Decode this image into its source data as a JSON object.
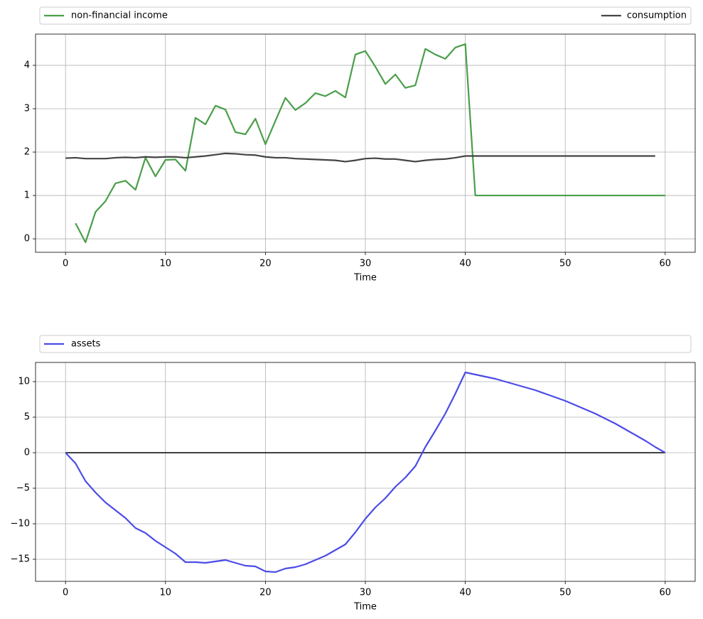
{
  "chart_data": [
    {
      "type": "line",
      "xlabel": "Time",
      "legend": "above-expand",
      "grid": true,
      "x": [
        0,
        1,
        2,
        3,
        4,
        5,
        6,
        7,
        8,
        9,
        10,
        11,
        12,
        13,
        14,
        15,
        16,
        17,
        18,
        19,
        20,
        21,
        22,
        23,
        24,
        25,
        26,
        27,
        28,
        29,
        30,
        31,
        32,
        33,
        34,
        35,
        36,
        37,
        38,
        39,
        40,
        41,
        42,
        43,
        44,
        45,
        46,
        47,
        48,
        49,
        50,
        51,
        52,
        53,
        54,
        55,
        56,
        57,
        58,
        59,
        60
      ],
      "xlim": [
        -3,
        63
      ],
      "xticks": [
        0,
        10,
        20,
        30,
        40,
        50,
        60
      ],
      "ylim": [
        -0.31,
        4.72
      ],
      "yticks": [
        0,
        1,
        2,
        3,
        4
      ],
      "series": [
        {
          "name": "non-financial income",
          "color": "#4a9e4a",
          "values": [
            null,
            0.36,
            -0.08,
            0.62,
            0.87,
            1.28,
            1.34,
            1.13,
            1.87,
            1.44,
            1.82,
            1.83,
            1.57,
            2.79,
            2.64,
            3.07,
            2.98,
            2.46,
            2.41,
            2.77,
            2.18,
            2.72,
            3.25,
            2.97,
            3.13,
            3.36,
            3.29,
            3.41,
            3.26,
            4.25,
            4.33,
            3.97,
            3.57,
            3.79,
            3.48,
            3.54,
            4.38,
            4.25,
            4.15,
            4.41,
            4.49,
            1.0,
            1.0,
            1.0,
            1.0,
            1.0,
            1.0,
            1.0,
            1.0,
            1.0,
            1.0,
            1.0,
            1.0,
            1.0,
            1.0,
            1.0,
            1.0,
            1.0,
            1.0,
            1.0,
            1.0
          ]
        },
        {
          "name": "consumption",
          "color": "#444444",
          "values": [
            1.86,
            1.87,
            1.85,
            1.85,
            1.85,
            1.87,
            1.88,
            1.87,
            1.89,
            1.88,
            1.89,
            1.89,
            1.87,
            1.89,
            1.91,
            1.94,
            1.97,
            1.96,
            1.94,
            1.93,
            1.89,
            1.87,
            1.87,
            1.85,
            1.84,
            1.83,
            1.82,
            1.81,
            1.78,
            1.81,
            1.85,
            1.86,
            1.84,
            1.84,
            1.81,
            1.78,
            1.81,
            1.83,
            1.84,
            1.87,
            1.91,
            1.91,
            1.91,
            1.91,
            1.91,
            1.91,
            1.91,
            1.91,
            1.91,
            1.91,
            1.91,
            1.91,
            1.91,
            1.91,
            1.91,
            1.91,
            1.91,
            1.91,
            1.91,
            1.91,
            null
          ]
        }
      ]
    },
    {
      "type": "line",
      "xlabel": "Time",
      "legend": "above-expand",
      "grid": true,
      "hline": 0,
      "x": [
        0,
        1,
        2,
        3,
        4,
        5,
        6,
        7,
        8,
        9,
        10,
        11,
        12,
        13,
        14,
        15,
        16,
        17,
        18,
        19,
        20,
        21,
        22,
        23,
        24,
        25,
        26,
        27,
        28,
        29,
        30,
        31,
        32,
        33,
        34,
        35,
        36,
        37,
        38,
        39,
        40,
        41,
        42,
        43,
        44,
        45,
        46,
        47,
        48,
        49,
        50,
        51,
        52,
        53,
        54,
        55,
        56,
        57,
        58,
        59,
        60
      ],
      "xlim": [
        -3,
        63
      ],
      "xticks": [
        0,
        10,
        20,
        30,
        40,
        50,
        60
      ],
      "ylim": [
        -18.1,
        12.7
      ],
      "yticks": [
        {
          "value": -15,
          "label": "−15"
        },
        {
          "value": -10,
          "label": "−10"
        },
        {
          "value": -5,
          "label": "−5"
        },
        0,
        5,
        10
      ],
      "series": [
        {
          "name": "assets",
          "color": "#4b4be8",
          "values": [
            0,
            -1.5,
            -4,
            -5.6,
            -7,
            -8.1,
            -9.2,
            -10.6,
            -11.3,
            -12.4,
            -13.3,
            -14.2,
            -15.4,
            -15.4,
            -15.5,
            -15.3,
            -15.1,
            -15.5,
            -15.9,
            -16.0,
            -16.7,
            -16.8,
            -16.3,
            -16.1,
            -15.7,
            -15.1,
            -14.5,
            -13.7,
            -12.9,
            -11.2,
            -9.3,
            -7.7,
            -6.4,
            -4.8,
            -3.5,
            -1.9,
            0.8,
            3.1,
            5.5,
            8.3,
            11.3,
            11.0,
            10.7,
            10.4,
            10.0,
            9.6,
            9.2,
            8.8,
            8.3,
            7.8,
            7.3,
            6.7,
            6.1,
            5.5,
            4.8,
            4.1,
            3.3,
            2.5,
            1.7,
            0.8,
            0.0
          ]
        }
      ]
    }
  ]
}
